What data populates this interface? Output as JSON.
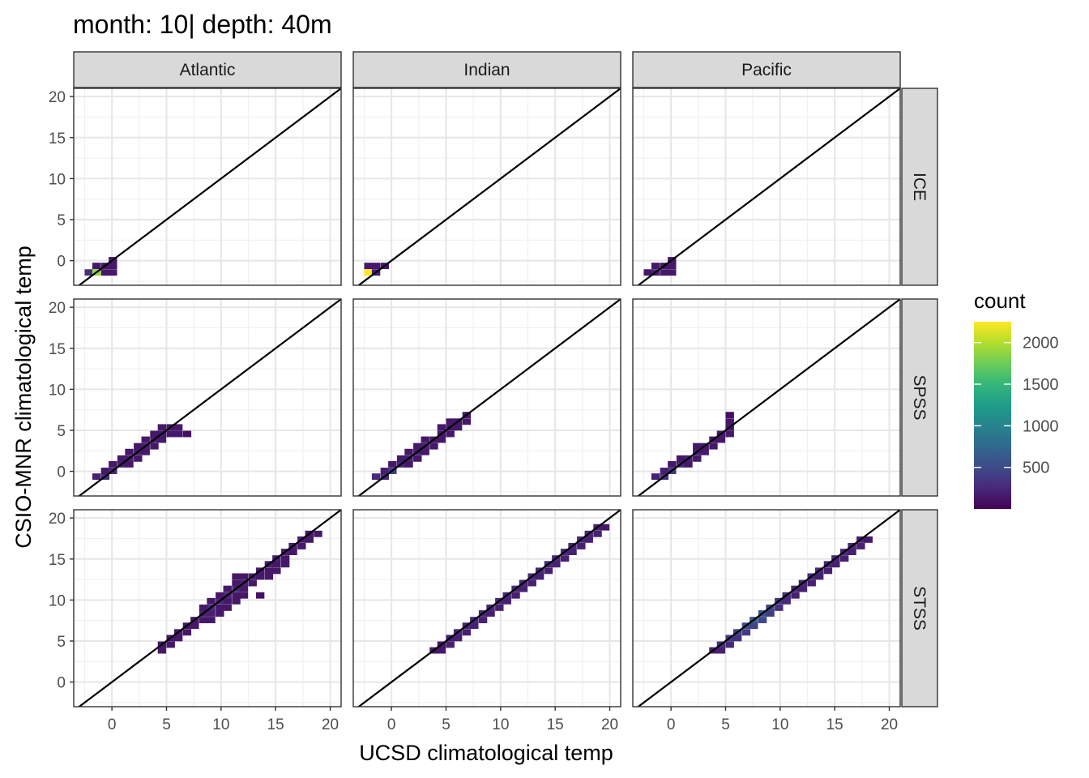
{
  "chart_data": {
    "type": "heatmap",
    "title": "month: 10| depth: 40m",
    "xlabel": "UCSD climatological temp",
    "ylabel": "CSIO-MNR climatological temp",
    "xlim": [
      -3.5,
      21
    ],
    "ylim": [
      -3,
      21
    ],
    "x_ticks": [
      0,
      5,
      10,
      15,
      20
    ],
    "y_ticks": [
      0,
      5,
      10,
      15,
      20
    ],
    "x_tick_labels": [
      "0",
      "5",
      "10",
      "15",
      "20"
    ],
    "y_tick_labels": [
      "0",
      "5",
      "10",
      "15",
      "20"
    ],
    "grid": true,
    "bin_width": 0.75,
    "reference_line": "y = x",
    "facet_columns": [
      "Atlantic",
      "Indian",
      "Pacific"
    ],
    "facet_rows": [
      "ICE",
      "SPSS",
      "STSS"
    ],
    "legend": {
      "title": "count",
      "placement": "right",
      "min": 1,
      "max": 2250,
      "ticks": [
        500,
        1000,
        1500,
        2000
      ],
      "tick_labels": [
        "500",
        "1000",
        "1500",
        "2000"
      ],
      "colors": [
        "#440154",
        "#482878",
        "#3e4a89",
        "#31688e",
        "#26828e",
        "#1f9e89",
        "#35b779",
        "#6dcd59",
        "#b4de2c",
        "#fde725"
      ]
    },
    "panels": [
      {
        "row": "ICE",
        "col": "Atlantic",
        "bins": [
          [
            -2.5,
            -1.8,
            300
          ],
          [
            -1.8,
            -1.8,
            1900
          ],
          [
            -1.8,
            -1.0,
            150
          ],
          [
            -1.0,
            -1.8,
            150
          ],
          [
            -1.0,
            -1.0,
            150
          ],
          [
            -0.3,
            -1.8,
            150
          ],
          [
            -0.3,
            -1.0,
            150
          ],
          [
            -0.3,
            -0.3,
            150
          ]
        ]
      },
      {
        "row": "ICE",
        "col": "Indian",
        "bins": [
          [
            -2.5,
            -1.8,
            2250
          ],
          [
            -1.8,
            -1.8,
            200
          ],
          [
            -2.5,
            -1.0,
            150
          ],
          [
            -1.8,
            -1.0,
            150
          ],
          [
            -1.0,
            -1.0,
            150
          ]
        ]
      },
      {
        "row": "ICE",
        "col": "Pacific",
        "bins": [
          [
            -2.5,
            -1.8,
            150
          ],
          [
            -1.8,
            -1.8,
            200
          ],
          [
            -1.8,
            -1.0,
            150
          ],
          [
            -1.0,
            -1.8,
            150
          ],
          [
            -1.0,
            -1.0,
            150
          ],
          [
            -0.3,
            -1.8,
            150
          ],
          [
            -0.3,
            -1.0,
            150
          ],
          [
            -0.3,
            -0.3,
            150
          ]
        ]
      },
      {
        "row": "SPSS",
        "col": "Atlantic",
        "bins": [
          [
            -1.8,
            -1.0,
            200
          ],
          [
            -1.0,
            -1.0,
            300
          ],
          [
            -1.0,
            -0.3,
            150
          ],
          [
            -0.3,
            -0.3,
            250
          ],
          [
            -0.3,
            0.5,
            150
          ],
          [
            0.5,
            0.5,
            200
          ],
          [
            0.5,
            1.2,
            150
          ],
          [
            1.2,
            0.5,
            150
          ],
          [
            1.2,
            1.2,
            200
          ],
          [
            1.2,
            2.0,
            150
          ],
          [
            2.0,
            1.2,
            150
          ],
          [
            2.0,
            2.0,
            200
          ],
          [
            2.0,
            2.7,
            150
          ],
          [
            2.7,
            2.0,
            150
          ],
          [
            2.7,
            2.7,
            200
          ],
          [
            2.7,
            3.5,
            150
          ],
          [
            3.5,
            2.7,
            150
          ],
          [
            3.5,
            3.5,
            200
          ],
          [
            3.5,
            4.2,
            150
          ],
          [
            4.2,
            3.5,
            150
          ],
          [
            4.2,
            4.2,
            150
          ],
          [
            4.2,
            5.0,
            150
          ],
          [
            5.0,
            4.2,
            150
          ],
          [
            5.0,
            5.0,
            150
          ],
          [
            5.7,
            4.2,
            150
          ],
          [
            5.7,
            5.0,
            150
          ],
          [
            6.5,
            4.2,
            100
          ]
        ]
      },
      {
        "row": "SPSS",
        "col": "Indian",
        "bins": [
          [
            -1.8,
            -1.0,
            250
          ],
          [
            -1.0,
            -1.0,
            300
          ],
          [
            -1.0,
            -0.3,
            200
          ],
          [
            -0.3,
            -0.3,
            400
          ],
          [
            -0.3,
            0.5,
            150
          ],
          [
            0.5,
            0.5,
            250
          ],
          [
            0.5,
            1.2,
            150
          ],
          [
            1.2,
            0.5,
            150
          ],
          [
            1.2,
            1.2,
            200
          ],
          [
            1.2,
            2.0,
            150
          ],
          [
            2.0,
            1.2,
            150
          ],
          [
            2.0,
            2.0,
            200
          ],
          [
            2.0,
            2.7,
            150
          ],
          [
            2.7,
            2.0,
            150
          ],
          [
            2.7,
            2.7,
            200
          ],
          [
            2.7,
            3.5,
            150
          ],
          [
            3.5,
            2.7,
            150
          ],
          [
            3.5,
            3.5,
            150
          ],
          [
            4.2,
            3.5,
            150
          ],
          [
            4.2,
            4.2,
            150
          ],
          [
            4.2,
            5.0,
            150
          ],
          [
            5.0,
            4.2,
            150
          ],
          [
            5.0,
            5.0,
            150
          ],
          [
            5.0,
            5.7,
            150
          ],
          [
            5.7,
            5.0,
            150
          ],
          [
            5.7,
            5.7,
            150
          ],
          [
            6.5,
            5.7,
            150
          ],
          [
            6.5,
            6.5,
            150
          ]
        ]
      },
      {
        "row": "SPSS",
        "col": "Pacific",
        "bins": [
          [
            -1.8,
            -1.0,
            200
          ],
          [
            -1.0,
            -1.0,
            350
          ],
          [
            -1.0,
            -0.3,
            200
          ],
          [
            -0.3,
            -0.3,
            350
          ],
          [
            -0.3,
            0.5,
            150
          ],
          [
            0.5,
            0.5,
            250
          ],
          [
            0.5,
            1.2,
            150
          ],
          [
            1.2,
            0.5,
            150
          ],
          [
            1.2,
            1.2,
            200
          ],
          [
            2.0,
            1.2,
            150
          ],
          [
            2.0,
            2.0,
            200
          ],
          [
            2.0,
            2.7,
            150
          ],
          [
            2.7,
            2.0,
            150
          ],
          [
            2.7,
            2.7,
            150
          ],
          [
            3.5,
            2.7,
            150
          ],
          [
            3.5,
            3.5,
            150
          ],
          [
            4.2,
            3.5,
            150
          ],
          [
            4.2,
            4.2,
            150
          ],
          [
            5.0,
            4.2,
            150
          ],
          [
            5.0,
            5.0,
            150
          ],
          [
            5.0,
            5.7,
            150
          ],
          [
            5.0,
            6.5,
            100
          ]
        ]
      },
      {
        "row": "STSS",
        "col": "Atlantic",
        "bins": [
          [
            4.2,
            3.5,
            150
          ],
          [
            4.2,
            4.2,
            150
          ],
          [
            5.0,
            4.2,
            150
          ],
          [
            5.0,
            5.0,
            150
          ],
          [
            5.7,
            5.0,
            150
          ],
          [
            5.7,
            5.7,
            150
          ],
          [
            6.5,
            5.7,
            150
          ],
          [
            6.5,
            6.5,
            150
          ],
          [
            7.2,
            6.5,
            150
          ],
          [
            7.2,
            7.2,
            150
          ],
          [
            8.0,
            7.2,
            150
          ],
          [
            8.0,
            8.0,
            200
          ],
          [
            8.0,
            8.7,
            150
          ],
          [
            8.7,
            7.2,
            150
          ],
          [
            8.7,
            8.0,
            200
          ],
          [
            8.7,
            8.7,
            250
          ],
          [
            8.7,
            9.5,
            150
          ],
          [
            9.5,
            8.0,
            150
          ],
          [
            9.5,
            8.7,
            150
          ],
          [
            9.5,
            9.5,
            250
          ],
          [
            9.5,
            10.2,
            150
          ],
          [
            10.2,
            8.7,
            150
          ],
          [
            10.2,
            9.5,
            150
          ],
          [
            10.2,
            10.2,
            250
          ],
          [
            10.2,
            11.0,
            150
          ],
          [
            11.0,
            9.5,
            150
          ],
          [
            11.0,
            10.2,
            150
          ],
          [
            11.0,
            11.0,
            250
          ],
          [
            11.0,
            11.7,
            150
          ],
          [
            11.0,
            12.5,
            150
          ],
          [
            11.7,
            10.2,
            150
          ],
          [
            11.7,
            11.0,
            150
          ],
          [
            11.7,
            11.7,
            200
          ],
          [
            11.7,
            12.5,
            150
          ],
          [
            12.5,
            11.7,
            150
          ],
          [
            12.5,
            12.5,
            200
          ],
          [
            13.2,
            12.5,
            150
          ],
          [
            13.2,
            13.2,
            150
          ],
          [
            13.2,
            10.2,
            100
          ],
          [
            14.0,
            12.5,
            150
          ],
          [
            14.0,
            13.2,
            150
          ],
          [
            14.0,
            14.0,
            200
          ],
          [
            14.7,
            13.2,
            150
          ],
          [
            14.7,
            14.0,
            150
          ],
          [
            14.7,
            14.7,
            200
          ],
          [
            15.5,
            14.0,
            150
          ],
          [
            15.5,
            14.7,
            150
          ],
          [
            15.5,
            15.5,
            200
          ],
          [
            16.2,
            15.5,
            150
          ],
          [
            16.2,
            16.2,
            200
          ],
          [
            17.0,
            16.2,
            150
          ],
          [
            17.0,
            17.0,
            200
          ],
          [
            17.7,
            17.0,
            150
          ],
          [
            17.7,
            17.7,
            150
          ],
          [
            18.5,
            17.7,
            150
          ]
        ]
      },
      {
        "row": "STSS",
        "col": "Indian",
        "bins": [
          [
            3.5,
            3.5,
            150
          ],
          [
            4.2,
            3.5,
            150
          ],
          [
            4.2,
            4.2,
            150
          ],
          [
            5.0,
            4.2,
            200
          ],
          [
            5.0,
            5.0,
            200
          ],
          [
            5.7,
            5.0,
            200
          ],
          [
            5.7,
            5.7,
            250
          ],
          [
            6.5,
            5.7,
            200
          ],
          [
            6.5,
            6.5,
            250
          ],
          [
            7.2,
            6.5,
            200
          ],
          [
            7.2,
            7.2,
            250
          ],
          [
            8.0,
            7.2,
            200
          ],
          [
            8.0,
            8.0,
            250
          ],
          [
            8.7,
            8.0,
            200
          ],
          [
            8.7,
            8.7,
            250
          ],
          [
            9.5,
            8.7,
            200
          ],
          [
            9.5,
            9.5,
            250
          ],
          [
            10.2,
            9.5,
            200
          ],
          [
            10.2,
            10.2,
            250
          ],
          [
            11.0,
            10.2,
            200
          ],
          [
            11.0,
            11.0,
            250
          ],
          [
            11.7,
            11.0,
            200
          ],
          [
            11.7,
            11.7,
            250
          ],
          [
            12.5,
            11.7,
            200
          ],
          [
            12.5,
            12.5,
            250
          ],
          [
            13.2,
            12.5,
            200
          ],
          [
            13.2,
            13.2,
            250
          ],
          [
            14.0,
            13.2,
            200
          ],
          [
            14.0,
            14.0,
            250
          ],
          [
            14.7,
            14.0,
            200
          ],
          [
            14.7,
            14.7,
            250
          ],
          [
            15.5,
            14.7,
            200
          ],
          [
            15.5,
            15.5,
            250
          ],
          [
            16.2,
            15.5,
            200
          ],
          [
            16.2,
            16.2,
            250
          ],
          [
            17.0,
            16.2,
            200
          ],
          [
            17.0,
            17.0,
            250
          ],
          [
            17.7,
            17.0,
            200
          ],
          [
            17.7,
            17.7,
            250
          ],
          [
            18.5,
            17.7,
            200
          ],
          [
            18.5,
            18.5,
            200
          ],
          [
            19.2,
            18.5,
            150
          ]
        ]
      },
      {
        "row": "STSS",
        "col": "Pacific",
        "bins": [
          [
            3.5,
            3.5,
            200
          ],
          [
            4.2,
            3.5,
            200
          ],
          [
            4.2,
            4.2,
            300
          ],
          [
            5.0,
            4.2,
            250
          ],
          [
            5.0,
            5.0,
            400
          ],
          [
            5.7,
            5.0,
            300
          ],
          [
            5.7,
            5.7,
            450
          ],
          [
            6.5,
            5.7,
            400
          ],
          [
            6.5,
            6.5,
            550
          ],
          [
            7.2,
            6.5,
            450
          ],
          [
            7.2,
            7.2,
            650
          ],
          [
            8.0,
            7.2,
            500
          ],
          [
            8.0,
            8.0,
            600
          ],
          [
            8.7,
            8.0,
            400
          ],
          [
            8.7,
            8.7,
            500
          ],
          [
            9.5,
            8.7,
            300
          ],
          [
            9.5,
            9.5,
            350
          ],
          [
            10.2,
            9.5,
            250
          ],
          [
            10.2,
            10.2,
            300
          ],
          [
            11.0,
            10.2,
            200
          ],
          [
            11.0,
            11.0,
            250
          ],
          [
            11.7,
            11.0,
            200
          ],
          [
            11.7,
            11.7,
            250
          ],
          [
            12.5,
            11.7,
            200
          ],
          [
            12.5,
            12.5,
            250
          ],
          [
            13.2,
            12.5,
            200
          ],
          [
            13.2,
            13.2,
            250
          ],
          [
            14.0,
            13.2,
            200
          ],
          [
            14.0,
            14.0,
            250
          ],
          [
            14.7,
            14.0,
            200
          ],
          [
            14.7,
            14.7,
            250
          ],
          [
            15.5,
            14.7,
            200
          ],
          [
            15.5,
            15.5,
            250
          ],
          [
            16.2,
            15.5,
            200
          ],
          [
            16.2,
            16.2,
            250
          ],
          [
            17.0,
            16.2,
            200
          ],
          [
            17.0,
            17.0,
            200
          ],
          [
            17.7,
            17.0,
            150
          ]
        ]
      }
    ]
  }
}
